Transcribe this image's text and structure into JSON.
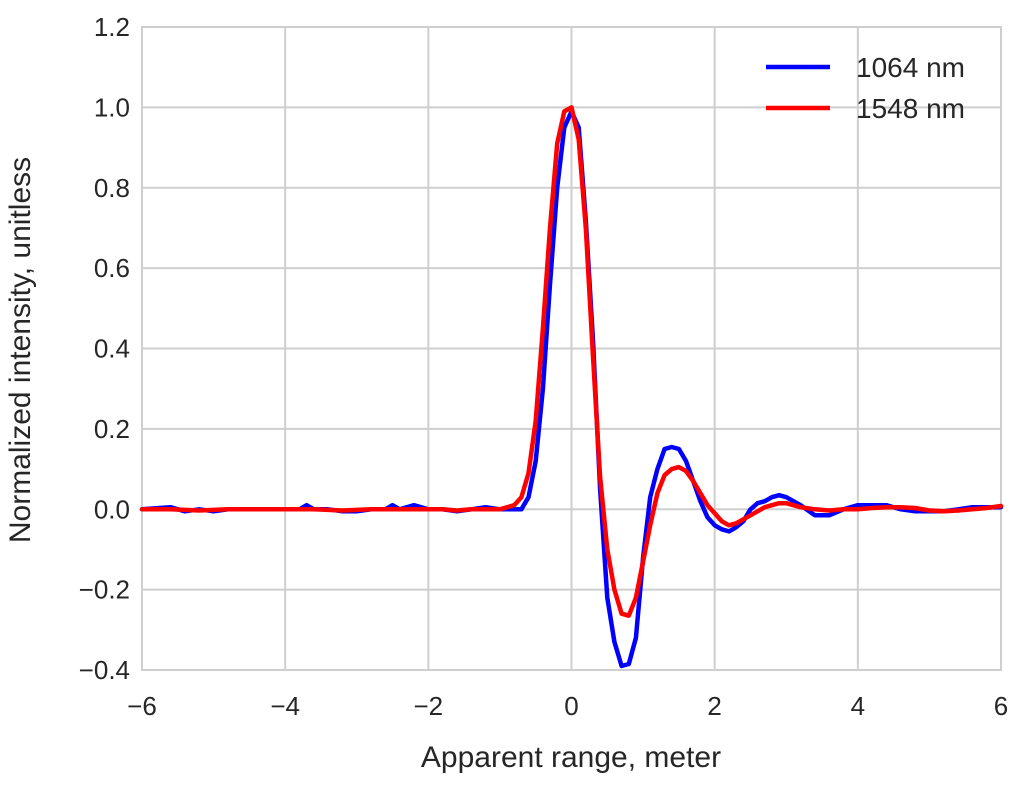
{
  "chart_data": {
    "type": "line",
    "title": "",
    "xlabel": "Apparent range, meter",
    "ylabel": "Normalized intensity, unitless",
    "xlim": [
      -6,
      6
    ],
    "ylim": [
      -0.4,
      1.2
    ],
    "xticks": [
      -6,
      -4,
      -2,
      0,
      2,
      4,
      6
    ],
    "xtick_labels": [
      "−6",
      "−4",
      "−2",
      "0",
      "2",
      "4",
      "6"
    ],
    "yticks": [
      -0.4,
      -0.2,
      0.0,
      0.2,
      0.4,
      0.6,
      0.8,
      1.0,
      1.2
    ],
    "ytick_labels": [
      "−0.4",
      "−0.2",
      "0.0",
      "0.2",
      "0.4",
      "0.6",
      "0.8",
      "1.0",
      "1.2"
    ],
    "grid": true,
    "legend_position": "top-right",
    "series": [
      {
        "name": "1064 nm",
        "color": "#0000ff",
        "x": [
          -6,
          -5.6,
          -5.4,
          -5.2,
          -5.0,
          -4.8,
          -4.6,
          -4.4,
          -4.2,
          -4.0,
          -3.8,
          -3.7,
          -3.6,
          -3.4,
          -3.2,
          -3.0,
          -2.8,
          -2.6,
          -2.5,
          -2.4,
          -2.2,
          -2.0,
          -1.8,
          -1.6,
          -1.4,
          -1.2,
          -1.0,
          -0.8,
          -0.7,
          -0.6,
          -0.5,
          -0.4,
          -0.3,
          -0.2,
          -0.1,
          0.0,
          0.1,
          0.2,
          0.3,
          0.4,
          0.5,
          0.6,
          0.7,
          0.8,
          0.9,
          1.0,
          1.1,
          1.2,
          1.3,
          1.4,
          1.5,
          1.6,
          1.7,
          1.8,
          1.9,
          2.0,
          2.1,
          2.2,
          2.3,
          2.4,
          2.5,
          2.6,
          2.7,
          2.8,
          2.9,
          3.0,
          3.2,
          3.4,
          3.6,
          3.8,
          4.0,
          4.2,
          4.4,
          4.6,
          4.8,
          5.0,
          5.2,
          5.4,
          5.6,
          5.8,
          6.0
        ],
        "y": [
          0.0,
          0.005,
          -0.005,
          0.0,
          -0.005,
          0.0,
          0.0,
          0.0,
          0.0,
          0.0,
          0.0,
          0.01,
          0.0,
          0.0,
          -0.005,
          -0.005,
          0.0,
          0.0,
          0.01,
          0.0,
          0.01,
          0.0,
          0.0,
          -0.005,
          0.0,
          0.005,
          0.0,
          0.0,
          0.0,
          0.03,
          0.12,
          0.3,
          0.56,
          0.8,
          0.95,
          0.99,
          0.95,
          0.72,
          0.42,
          0.05,
          -0.22,
          -0.33,
          -0.39,
          -0.385,
          -0.32,
          -0.12,
          0.03,
          0.1,
          0.15,
          0.155,
          0.15,
          0.12,
          0.07,
          0.02,
          -0.02,
          -0.04,
          -0.05,
          -0.055,
          -0.045,
          -0.03,
          0.0,
          0.015,
          0.02,
          0.03,
          0.035,
          0.03,
          0.01,
          -0.015,
          -0.015,
          0.0,
          0.01,
          0.01,
          0.01,
          0.0,
          -0.005,
          -0.005,
          -0.005,
          0.0,
          0.005,
          0.005,
          0.005
        ]
      },
      {
        "name": "1548 nm",
        "color": "#ff0000",
        "x": [
          -6,
          -5.6,
          -5.2,
          -4.8,
          -4.4,
          -4.0,
          -3.6,
          -3.2,
          -2.8,
          -2.4,
          -2.0,
          -1.8,
          -1.6,
          -1.4,
          -1.2,
          -1.0,
          -0.8,
          -0.7,
          -0.6,
          -0.5,
          -0.4,
          -0.3,
          -0.2,
          -0.1,
          0.0,
          0.1,
          0.2,
          0.3,
          0.4,
          0.5,
          0.6,
          0.7,
          0.8,
          0.9,
          1.0,
          1.1,
          1.2,
          1.3,
          1.4,
          1.5,
          1.6,
          1.7,
          1.8,
          1.9,
          2.0,
          2.1,
          2.2,
          2.3,
          2.4,
          2.5,
          2.6,
          2.7,
          2.8,
          2.9,
          3.0,
          3.2,
          3.4,
          3.6,
          3.8,
          4.0,
          4.2,
          4.4,
          4.6,
          4.8,
          5.0,
          5.2,
          5.4,
          5.6,
          5.8,
          6.0
        ],
        "y": [
          0.0,
          0.0,
          -0.003,
          0.0,
          0.0,
          0.0,
          0.0,
          -0.003,
          0.0,
          0.0,
          0.0,
          0.0,
          -0.003,
          0.0,
          0.0,
          0.0,
          0.01,
          0.03,
          0.09,
          0.22,
          0.45,
          0.7,
          0.91,
          0.99,
          1.0,
          0.92,
          0.7,
          0.38,
          0.08,
          -0.1,
          -0.2,
          -0.26,
          -0.265,
          -0.22,
          -0.13,
          -0.04,
          0.04,
          0.085,
          0.1,
          0.105,
          0.095,
          0.07,
          0.04,
          0.01,
          -0.01,
          -0.03,
          -0.04,
          -0.035,
          -0.025,
          -0.015,
          -0.005,
          0.005,
          0.01,
          0.015,
          0.015,
          0.005,
          0.0,
          -0.003,
          0.0,
          0.0,
          0.003,
          0.005,
          0.005,
          0.003,
          -0.003,
          -0.005,
          -0.003,
          0.0,
          0.003,
          0.008
        ]
      }
    ]
  }
}
